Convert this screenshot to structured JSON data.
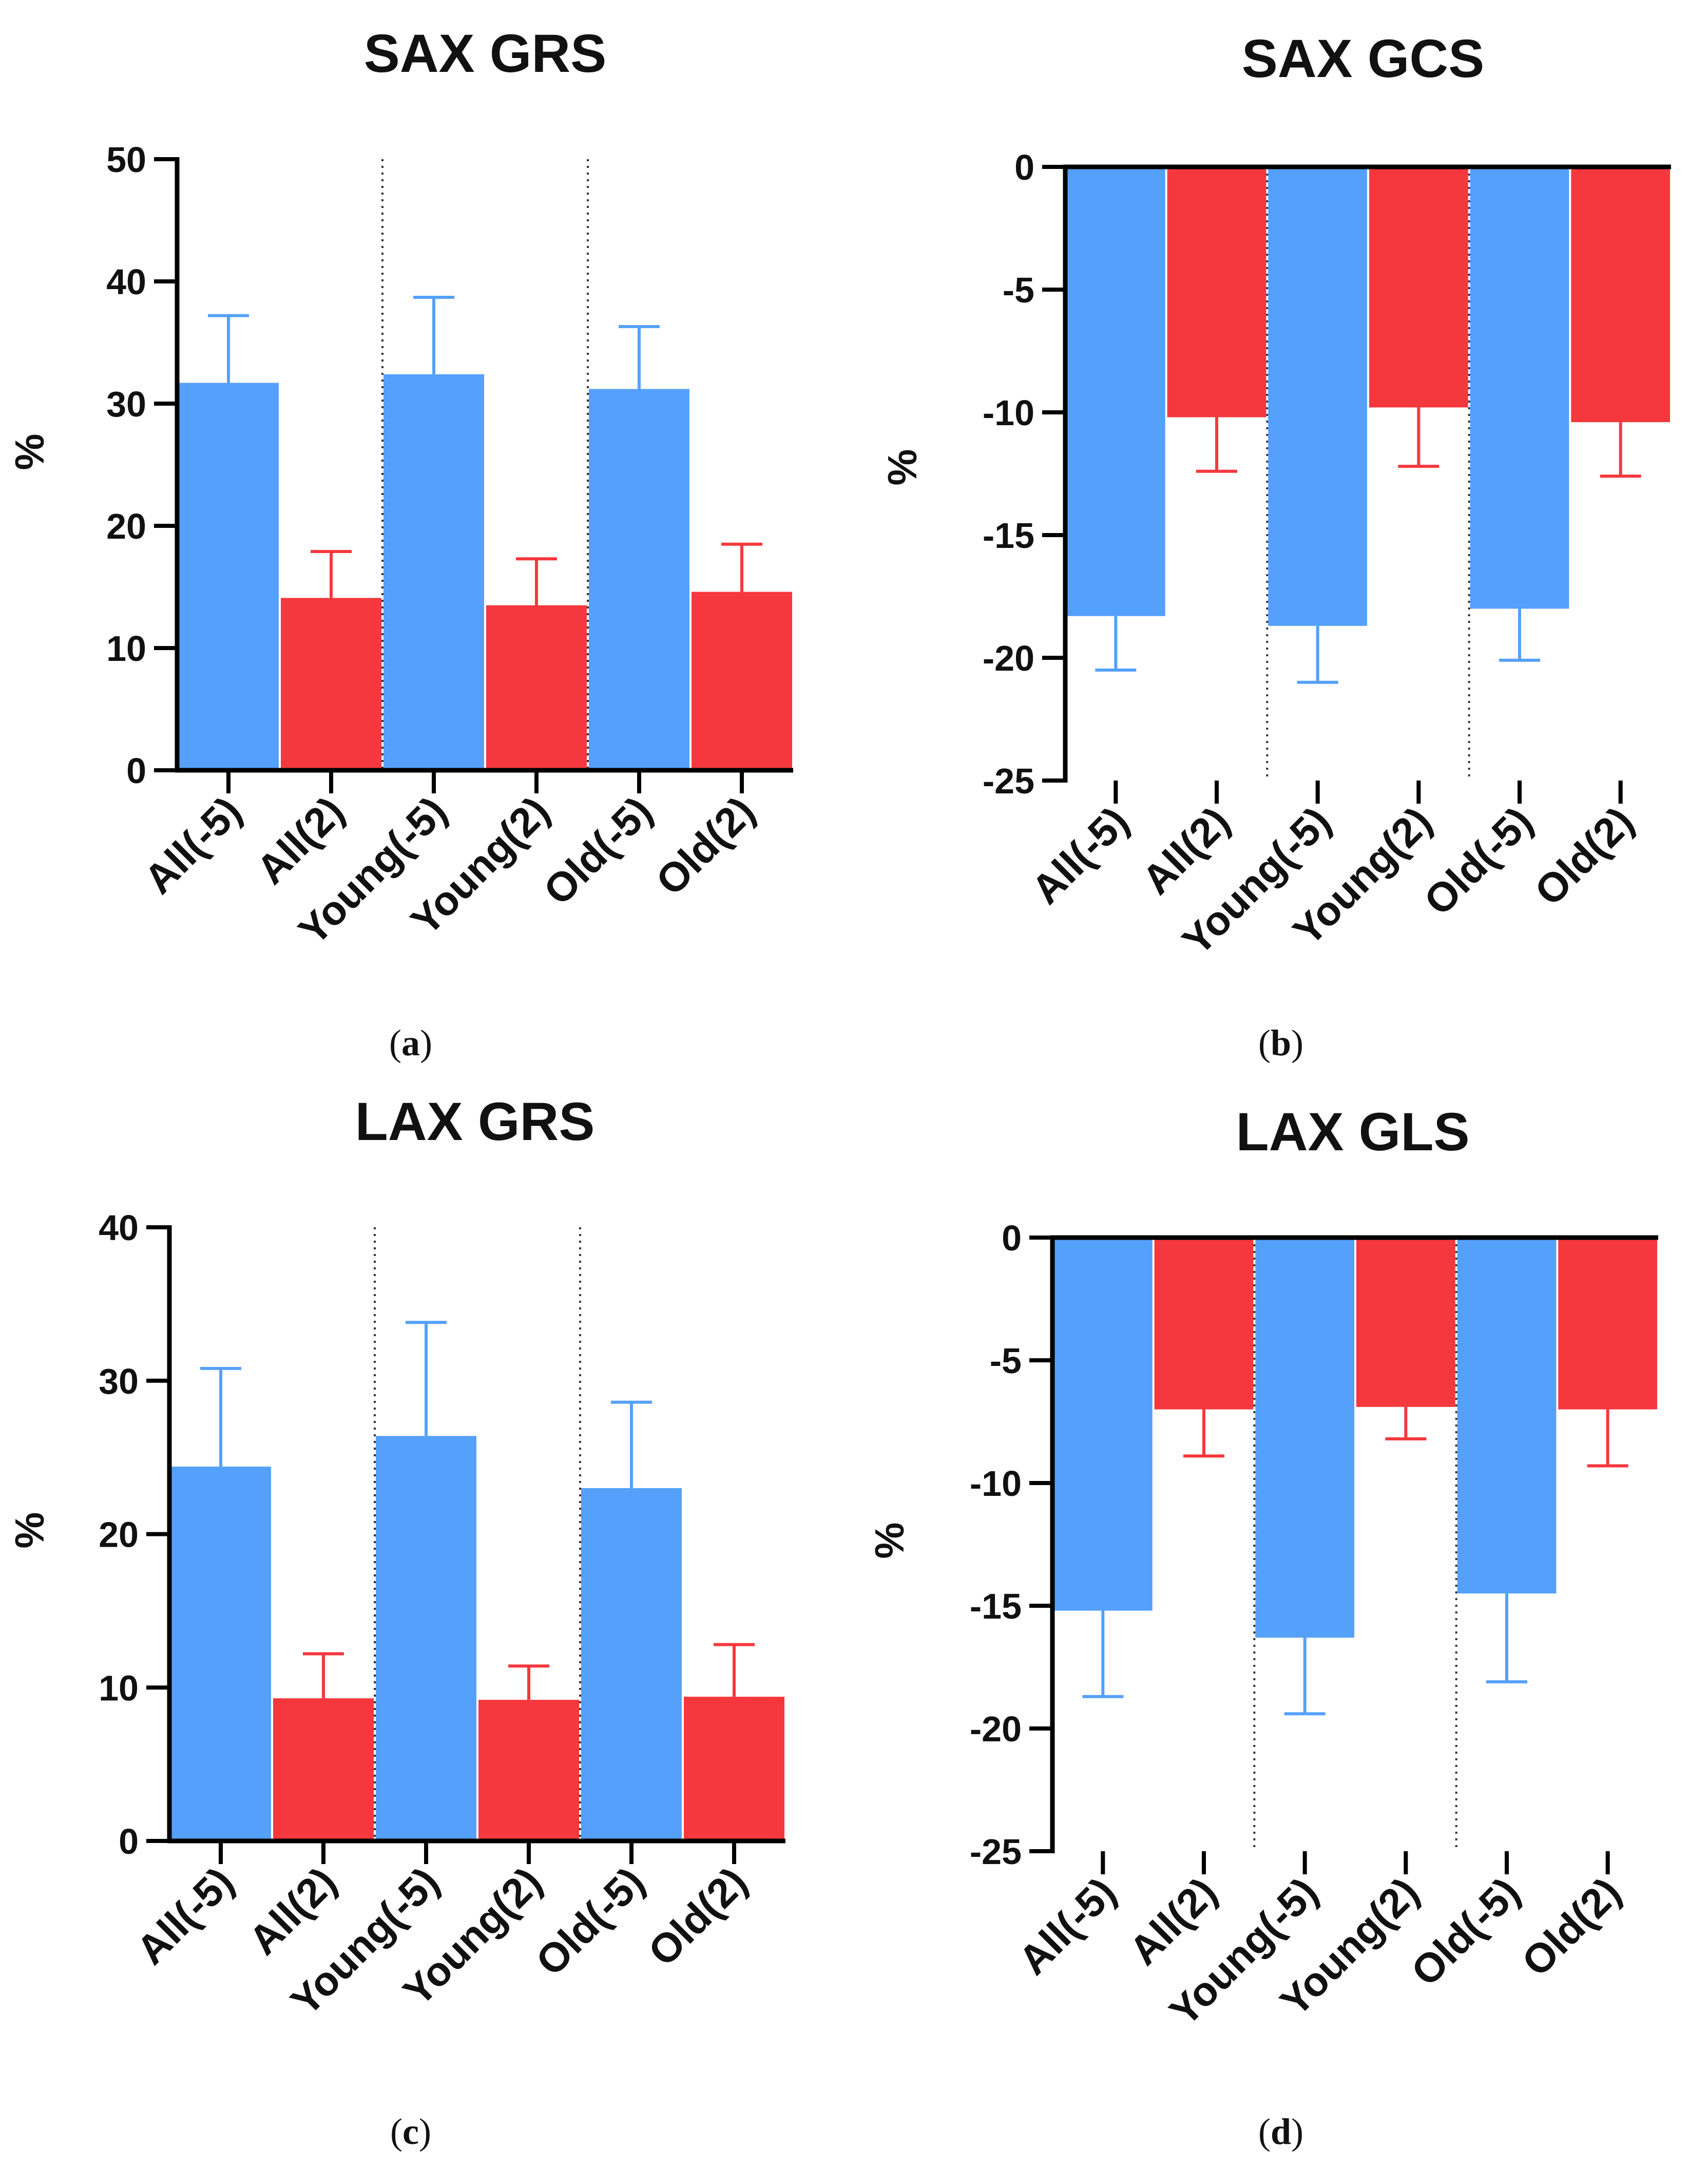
{
  "colors": {
    "blue": "#55A0FA",
    "red": "#F5383D",
    "axis": "#000000"
  },
  "chart_data": [
    {
      "type": "bar",
      "panel_id": "a",
      "title": "SAX GRS",
      "caption": {
        "open": "(",
        "letter": "a",
        "close": ")"
      },
      "ylabel": "%",
      "ylim": [
        0,
        50
      ],
      "yticks": [
        0,
        10,
        20,
        30,
        40,
        50
      ],
      "categories": [
        "All(-5)",
        "All(2)",
        "Young(-5)",
        "Young(2)",
        "Old(-5)",
        "Old(2)"
      ],
      "values": [
        31.7,
        14.1,
        32.4,
        13.5,
        31.2,
        14.6
      ],
      "errors": [
        5.5,
        3.8,
        6.3,
        3.8,
        5.1,
        3.9
      ],
      "bar_colors": [
        "blue",
        "red",
        "blue",
        "red",
        "blue",
        "red"
      ],
      "group_separators_after": [
        1,
        3
      ]
    },
    {
      "type": "bar",
      "panel_id": "b",
      "title": "SAX GCS",
      "caption": {
        "open": "(",
        "letter": "b",
        "close": ")"
      },
      "ylabel": "%",
      "ylim": [
        -25,
        0
      ],
      "yticks": [
        0,
        -5,
        -10,
        -15,
        -20,
        -25
      ],
      "categories": [
        "All(-5)",
        "All(2)",
        "Young(-5)",
        "Young(2)",
        "Old(-5)",
        "Old(2)"
      ],
      "values": [
        -18.3,
        -10.2,
        -18.7,
        -9.8,
        -18.0,
        -10.4
      ],
      "errors": [
        2.2,
        2.2,
        2.3,
        2.4,
        2.1,
        2.2
      ],
      "bar_colors": [
        "blue",
        "red",
        "blue",
        "red",
        "blue",
        "red"
      ],
      "group_separators_after": [
        1,
        3
      ]
    },
    {
      "type": "bar",
      "panel_id": "c",
      "title": "LAX GRS",
      "caption": {
        "open": "(",
        "letter": "c",
        "close": ")"
      },
      "ylabel": "%",
      "ylim": [
        0,
        40
      ],
      "yticks": [
        0,
        10,
        20,
        30,
        40
      ],
      "categories": [
        "All(-5)",
        "All(2)",
        "Young(-5)",
        "Young(2)",
        "Old(-5)",
        "Old(2)"
      ],
      "values": [
        24.4,
        9.3,
        26.4,
        9.2,
        23.0,
        9.4
      ],
      "errors": [
        6.4,
        2.9,
        7.4,
        2.2,
        5.6,
        3.4
      ],
      "bar_colors": [
        "blue",
        "red",
        "blue",
        "red",
        "blue",
        "red"
      ],
      "group_separators_after": [
        1,
        3
      ]
    },
    {
      "type": "bar",
      "panel_id": "d",
      "title": "LAX GLS",
      "caption": {
        "open": "(",
        "letter": "d",
        "close": ")"
      },
      "ylabel": "%",
      "ylim": [
        -25,
        0
      ],
      "yticks": [
        0,
        -5,
        -10,
        -15,
        -20,
        -25
      ],
      "categories": [
        "All(-5)",
        "All(2)",
        "Young(-5)",
        "Young(2)",
        "Old(-5)",
        "Old(2)"
      ],
      "values": [
        -15.2,
        -7.0,
        -16.3,
        -6.9,
        -14.5,
        -7.0
      ],
      "errors": [
        3.5,
        1.9,
        3.1,
        1.3,
        3.6,
        2.3
      ],
      "bar_colors": [
        "blue",
        "red",
        "blue",
        "red",
        "blue",
        "red"
      ],
      "group_separators_after": [
        1,
        3
      ]
    }
  ]
}
